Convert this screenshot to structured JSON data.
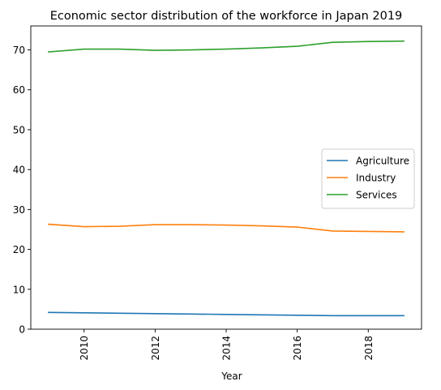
{
  "chart_data": {
    "type": "line",
    "title": "Economic sector distribution of the workforce in Japan 2019",
    "xlabel": "Year",
    "ylabel": "",
    "x": [
      2009,
      2010,
      2011,
      2012,
      2013,
      2014,
      2015,
      2016,
      2017,
      2018,
      2019
    ],
    "xlim": [
      2008.5,
      2019.5
    ],
    "ylim": [
      0,
      76
    ],
    "xticks": [
      2010,
      2012,
      2014,
      2016,
      2018
    ],
    "yticks": [
      0,
      10,
      20,
      30,
      40,
      50,
      60,
      70
    ],
    "grid": false,
    "legend_position": "center-right",
    "series": [
      {
        "name": "Agriculture",
        "color": "#1f77b4",
        "values": [
          4.2,
          4.1,
          4.0,
          3.9,
          3.8,
          3.7,
          3.6,
          3.5,
          3.4,
          3.4,
          3.4
        ]
      },
      {
        "name": "Industry",
        "color": "#ff7f0e",
        "values": [
          26.3,
          25.7,
          25.8,
          26.2,
          26.2,
          26.1,
          25.9,
          25.6,
          24.6,
          24.5,
          24.4
        ]
      },
      {
        "name": "Services",
        "color": "#2ca02c",
        "values": [
          69.5,
          70.2,
          70.2,
          69.9,
          70.0,
          70.2,
          70.5,
          70.9,
          71.9,
          72.1,
          72.2
        ]
      }
    ]
  }
}
